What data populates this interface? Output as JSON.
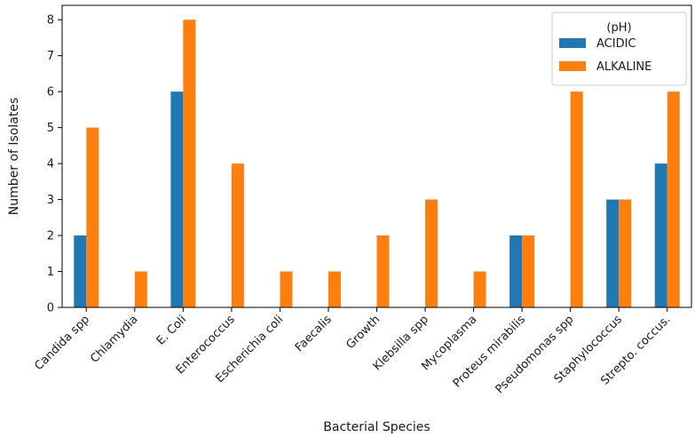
{
  "chart_data": {
    "type": "bar",
    "title": "",
    "xlabel": "Bacterial Species",
    "ylabel": "Number of Isolates",
    "ylim": [
      0,
      8.4
    ],
    "yticks": [
      0,
      1,
      2,
      3,
      4,
      5,
      6,
      7,
      8
    ],
    "grid": false,
    "legend": {
      "title": "(pH)",
      "placement": "top-right"
    },
    "categories": [
      "Candida spp",
      "Chlamydia",
      "E. Coli",
      "Enterococcus",
      "Escherichia coli",
      "Faecalis",
      "Growth",
      "Klebsilla spp",
      "Mycoplasma",
      "Proteus mirabilis",
      "Pseudomonas spp",
      "Staphylococcus",
      "Strepto. coccus."
    ],
    "series": [
      {
        "name": "ACIDIC",
        "color": "#1f77b4",
        "values": [
          2,
          0,
          6,
          0,
          0,
          0,
          0,
          0,
          0,
          2,
          0,
          3,
          4
        ]
      },
      {
        "name": "ALKALINE",
        "color": "#ff7f0e",
        "values": [
          5,
          1,
          8,
          4,
          1,
          1,
          2,
          3,
          1,
          2,
          6,
          3,
          6
        ]
      }
    ]
  }
}
